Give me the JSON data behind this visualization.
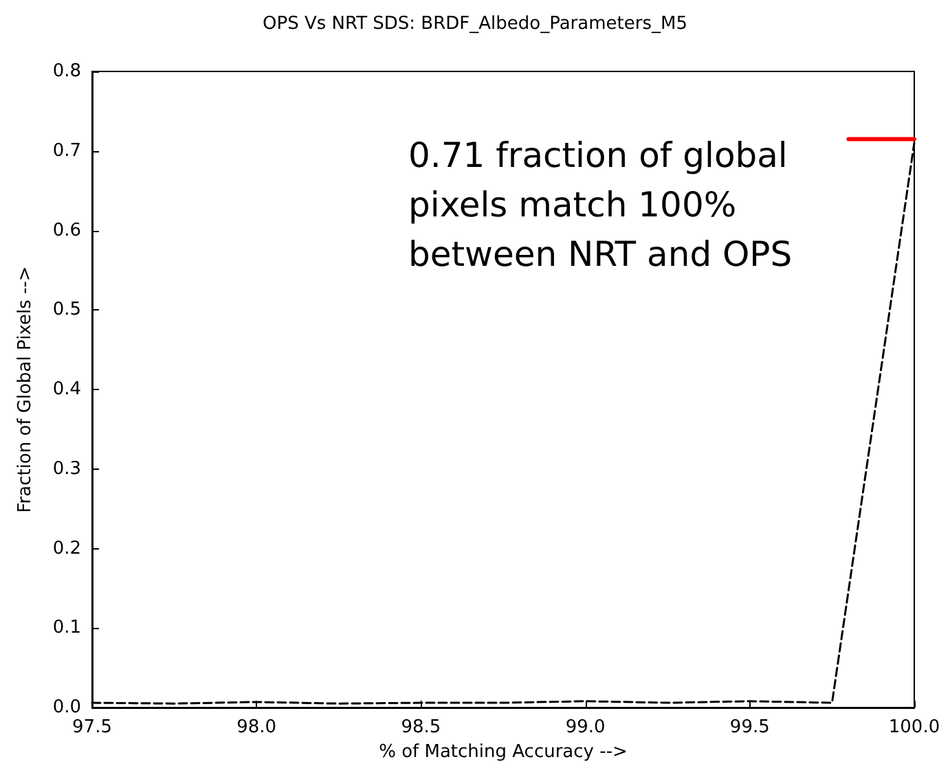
{
  "chart_data": {
    "type": "line",
    "title": "OPS Vs NRT SDS: BRDF_Albedo_Parameters_M5",
    "xlabel": "% of Matching Accuracy -->",
    "ylabel": "Fraction of Global Pixels -->",
    "x": [
      97.5,
      97.75,
      98.0,
      98.25,
      98.5,
      98.75,
      99.0,
      99.25,
      99.5,
      99.75,
      100.0
    ],
    "series": [
      {
        "color": "#000000",
        "line_style": "dashed",
        "values": [
          0.006,
          0.005,
          0.007,
          0.005,
          0.006,
          0.006,
          0.008,
          0.006,
          0.008,
          0.006,
          0.71
        ]
      },
      {
        "color": "#ff0000",
        "line_style": "solid",
        "x": [
          99.8,
          100.0
        ],
        "values": [
          0.715,
          0.715
        ]
      }
    ],
    "xlim": [
      97.5,
      100.0
    ],
    "xticks": [
      97.5,
      {
        "value": 98,
        "label": "98.0"
      },
      98.5,
      {
        "value": 99,
        "label": "99.0"
      },
      99.5,
      {
        "value": 100,
        "label": "100.0"
      }
    ],
    "ylim": [
      0,
      0.8
    ],
    "yticks": [
      {
        "value": 0,
        "label": "0.0"
      },
      0.1,
      0.2,
      0.3,
      0.4,
      0.5,
      0.6,
      0.7,
      0.8
    ],
    "grid": false,
    "marker": "none",
    "annotations": [
      "0.71 fraction of global pixels match 100% between NRT and OPS"
    ]
  }
}
